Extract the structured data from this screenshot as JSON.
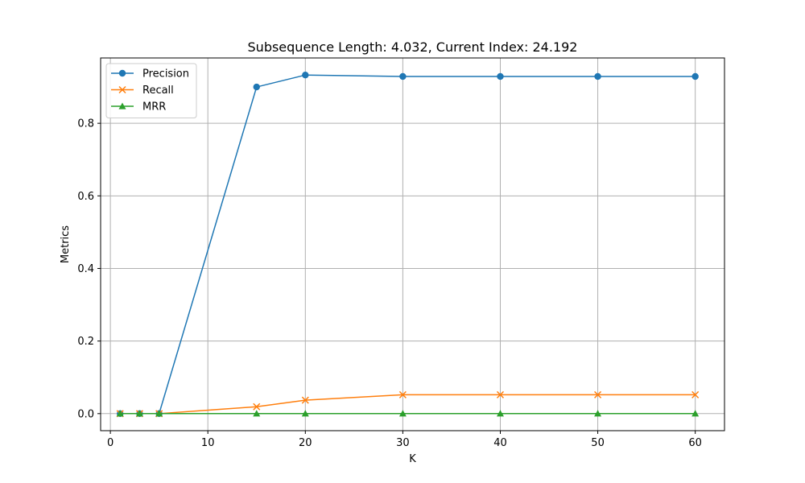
{
  "chart_data": {
    "type": "line",
    "title": "Subsequence Length: 4.032, Current Index: 24.192",
    "xlabel": "K",
    "ylabel": "Metrics",
    "x": [
      1,
      3,
      5,
      15,
      20,
      30,
      40,
      50,
      60
    ],
    "xlim": [
      -1,
      63
    ],
    "ylim": [
      -0.047,
      0.98
    ],
    "xticks": [
      0,
      10,
      20,
      30,
      40,
      50,
      60
    ],
    "yticks": [
      0.0,
      0.2,
      0.4,
      0.6,
      0.8
    ],
    "grid": true,
    "legend_position": "top-left",
    "series": [
      {
        "name": "Precision",
        "marker": "circle",
        "color": "#1f77b4",
        "values": [
          0.0,
          0.0,
          0.0,
          0.9,
          0.933,
          0.929,
          0.929,
          0.929,
          0.929
        ]
      },
      {
        "name": "Recall",
        "marker": "x",
        "color": "#ff7f0e",
        "values": [
          0.0,
          0.0,
          0.0,
          0.019,
          0.037,
          0.052,
          0.052,
          0.052,
          0.052
        ]
      },
      {
        "name": "MRR",
        "marker": "triangle",
        "color": "#2ca02c",
        "values": [
          0.0,
          0.0,
          0.0,
          0.0,
          0.0,
          0.0,
          0.0,
          0.0,
          0.0
        ]
      }
    ]
  }
}
